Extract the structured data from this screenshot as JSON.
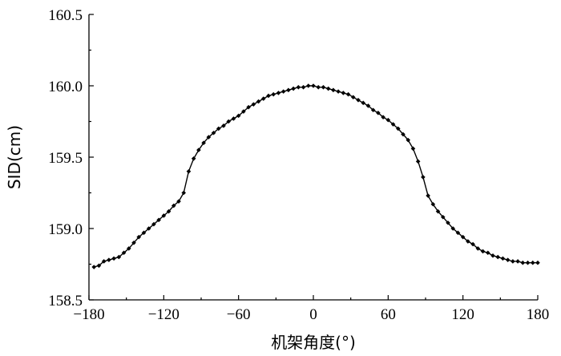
{
  "chart_data": {
    "type": "line",
    "title": "",
    "xlabel": "机架角度(°)",
    "ylabel": "SID(cm)",
    "xlim": [
      -180,
      180
    ],
    "ylim": [
      158.5,
      160.5
    ],
    "x_ticks": [
      -180,
      -120,
      -60,
      0,
      60,
      120,
      180
    ],
    "x_tick_labels": [
      "−180",
      "−120",
      "−60",
      "0",
      "60",
      "120",
      "180"
    ],
    "y_ticks": [
      158.5,
      159.0,
      159.5,
      160.0,
      160.5
    ],
    "y_tick_labels": [
      "158.5",
      "159.0",
      "159.5",
      "160.0",
      "160.5"
    ],
    "grid": false,
    "legend": "none",
    "series": [
      {
        "color": "#000000",
        "x": [
          -176,
          -172,
          -168,
          -164,
          -160,
          -156,
          -152,
          -148,
          -144,
          -140,
          -136,
          -132,
          -128,
          -124,
          -120,
          -116,
          -112,
          -108,
          -104,
          -100,
          -96,
          -92,
          -88,
          -84,
          -80,
          -76,
          -72,
          -68,
          -64,
          -60,
          -56,
          -52,
          -48,
          -44,
          -40,
          -36,
          -32,
          -28,
          -24,
          -20,
          -16,
          -12,
          -8,
          -4,
          0,
          4,
          8,
          12,
          16,
          20,
          24,
          28,
          32,
          36,
          40,
          44,
          48,
          52,
          56,
          60,
          64,
          68,
          72,
          76,
          80,
          84,
          88,
          92,
          96,
          100,
          104,
          108,
          112,
          116,
          120,
          124,
          128,
          132,
          136,
          140,
          144,
          148,
          152,
          156,
          160,
          164,
          168,
          172,
          176,
          180
        ],
        "values": [
          158.73,
          158.74,
          158.77,
          158.78,
          158.79,
          158.8,
          158.83,
          158.86,
          158.9,
          158.94,
          158.97,
          159.0,
          159.03,
          159.06,
          159.09,
          159.12,
          159.16,
          159.19,
          159.25,
          159.4,
          159.49,
          159.55,
          159.6,
          159.64,
          159.67,
          159.7,
          159.72,
          159.75,
          159.77,
          159.79,
          159.82,
          159.85,
          159.87,
          159.89,
          159.91,
          159.93,
          159.94,
          159.95,
          159.96,
          159.97,
          159.98,
          159.99,
          159.99,
          160.0,
          160.0,
          159.99,
          159.99,
          159.98,
          159.97,
          159.96,
          159.95,
          159.94,
          159.92,
          159.9,
          159.88,
          159.86,
          159.83,
          159.81,
          159.78,
          159.76,
          159.73,
          159.7,
          159.66,
          159.62,
          159.56,
          159.47,
          159.36,
          159.23,
          159.17,
          159.12,
          159.08,
          159.04,
          159.0,
          158.97,
          158.94,
          158.91,
          158.89,
          158.86,
          158.84,
          158.83,
          158.81,
          158.8,
          158.79,
          158.78,
          158.77,
          158.77,
          158.76,
          158.76,
          158.76,
          158.76
        ]
      }
    ]
  }
}
